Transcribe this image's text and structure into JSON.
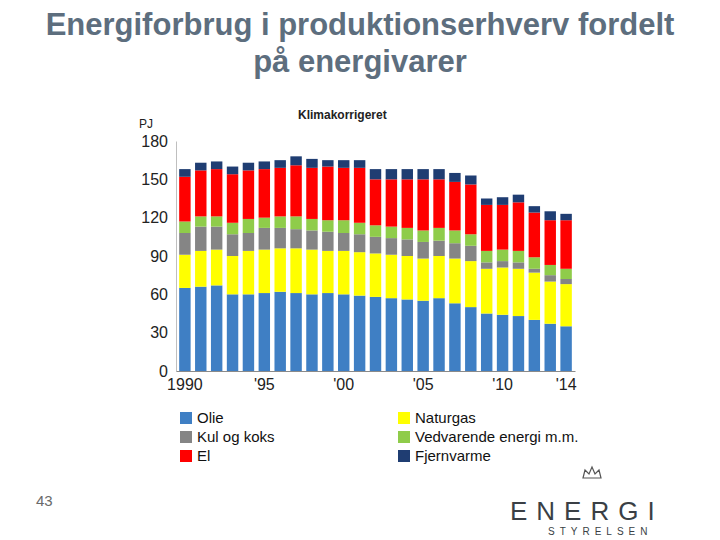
{
  "chart_data": {
    "type": "bar",
    "stacked": true,
    "title": "Energiforbrug i produktionserhverv fordelt på energivarer",
    "subtitle": "Klimakorrigeret",
    "y_label": "PJ",
    "categories": [
      "1990",
      null,
      null,
      null,
      null,
      "'95",
      null,
      null,
      null,
      null,
      "'00",
      null,
      null,
      null,
      null,
      "'05",
      null,
      null,
      null,
      null,
      "'10",
      null,
      null,
      null,
      "'14"
    ],
    "series": [
      {
        "name": "Olie",
        "color": "#3f7fc4",
        "values": [
          65,
          66,
          67,
          60,
          60,
          61,
          62,
          61,
          60,
          61,
          60,
          59,
          58,
          57,
          56,
          55,
          57,
          53,
          50,
          45,
          44,
          43,
          40,
          37,
          35
        ]
      },
      {
        "name": "Naturgas",
        "color": "#ffff00",
        "values": [
          26,
          28,
          28,
          30,
          34,
          34,
          34,
          35,
          35,
          33,
          34,
          34,
          34,
          34,
          34,
          33,
          33,
          35,
          36,
          35,
          37,
          37,
          37,
          33,
          33
        ]
      },
      {
        "name": "Kul og koks",
        "color": "#858585",
        "values": [
          17,
          19,
          18,
          17,
          14,
          17,
          16,
          15,
          15,
          15,
          14,
          14,
          13,
          13,
          13,
          13,
          12,
          12,
          12,
          5,
          5,
          5,
          3,
          5,
          4
        ]
      },
      {
        "name": "Vedvarende energi m.m.",
        "color": "#8fcc4a",
        "values": [
          9,
          8,
          8,
          9,
          11,
          8,
          9,
          10,
          9,
          9,
          10,
          9,
          9,
          9,
          9,
          9,
          10,
          10,
          9,
          9,
          9,
          9,
          9,
          8,
          8
        ]
      },
      {
        "name": "El",
        "color": "#ff0000",
        "values": [
          35,
          36,
          37,
          38,
          38,
          38,
          38,
          40,
          40,
          42,
          41,
          43,
          36,
          37,
          38,
          40,
          38,
          38,
          39,
          36,
          35,
          38,
          35,
          35,
          38
        ]
      },
      {
        "name": "Fjernvarme",
        "color": "#1f3d72",
        "values": [
          6,
          6,
          6,
          6,
          6,
          6,
          6,
          7,
          7,
          5,
          6,
          6,
          8,
          8,
          8,
          8,
          8,
          7,
          7,
          5,
          6,
          6,
          5,
          7,
          5
        ]
      }
    ],
    "ylim": [
      0,
      180
    ],
    "yticks": [
      0,
      30,
      60,
      90,
      120,
      150,
      180
    ],
    "grid": false,
    "legend": "bottom"
  },
  "page": {
    "number": "43",
    "logo": "ENERGI",
    "logo_sub": "STYRELSEN"
  }
}
